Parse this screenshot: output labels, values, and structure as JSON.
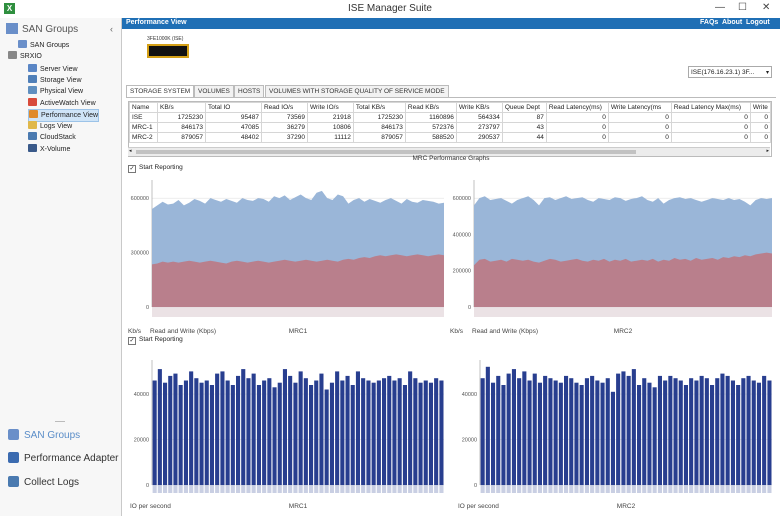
{
  "window": {
    "title": "ISE Manager Suite",
    "icon": "x-app-icon",
    "controls": [
      "—",
      "☐",
      "✕"
    ]
  },
  "sidebar": {
    "heading": "SAN Groups",
    "collapse": "‹",
    "tree": [
      {
        "label": "SAN Groups",
        "icon": "san-groups-icon",
        "color": "#6a8fc9",
        "level": 1
      },
      {
        "label": "SRXIO",
        "icon": "expand-icon",
        "color": "#888",
        "level": 0
      },
      {
        "label": "Server View",
        "icon": "server-view-icon",
        "color": "#5a86c5",
        "level": 2
      },
      {
        "label": "Storage View",
        "icon": "storage-view-icon",
        "color": "#4f7fb8",
        "level": 2
      },
      {
        "label": "Physical View",
        "icon": "physical-view-icon",
        "color": "#5f8fc0",
        "level": 2
      },
      {
        "label": "ActiveWatch View",
        "icon": "activewatch-icon",
        "color": "#d84a3a",
        "level": 2
      },
      {
        "label": "Performance View",
        "icon": "performance-icon",
        "color": "#e08a2a",
        "level": 2,
        "selected": true
      },
      {
        "label": "Logs View",
        "icon": "logs-icon",
        "color": "#e0b84a",
        "level": 2
      },
      {
        "label": "CloudStack",
        "icon": "cloudstack-icon",
        "color": "#4a7ab0",
        "level": 2
      },
      {
        "label": "X-Volume",
        "icon": "x-volume-icon",
        "color": "#3a5a8a",
        "level": 2
      }
    ],
    "nav": [
      {
        "label": "SAN Groups",
        "icon": "san-groups-nav-icon",
        "color": "#6a8fc9",
        "active": true
      },
      {
        "label": "Performance Adapter",
        "icon": "performance-adapter-icon",
        "color": "#3b6bb0",
        "active": false
      },
      {
        "label": "Collect Logs",
        "icon": "collect-logs-icon",
        "color": "#4a7ab0",
        "active": false
      }
    ]
  },
  "header": {
    "title": "Performance View",
    "links": [
      "FAQs",
      "About",
      "Logout"
    ]
  },
  "device": {
    "label": "3FE1000K (ISE)"
  },
  "selector": {
    "value": "ISE(176.16.23.1) 3F...",
    "arrow": "▾"
  },
  "tabs": [
    "STORAGE SYSTEM",
    "VOLUMES",
    "HOSTS",
    "VOLUMES WITH STORAGE QUALITY OF SERVICE MODE"
  ],
  "table": {
    "columns": [
      "Name",
      "KB/s",
      "Total IO",
      "Read IO/s",
      "Write IO/s",
      "Total KB/s",
      "Read KB/s",
      "Write KB/s",
      "Queue Dept",
      "Read Latency(ms)",
      "Write Latency(ms",
      "Read Latency Max(ms)",
      "Write"
    ],
    "rows": [
      [
        "ISE",
        "1725230",
        "95487",
        "73569",
        "21918",
        "1725230",
        "1160896",
        "564334",
        "87",
        "0",
        "0",
        "0",
        "0"
      ],
      [
        "MRC-1",
        "846173",
        "47085",
        "36279",
        "10806",
        "846173",
        "572376",
        "273797",
        "43",
        "0",
        "0",
        "0",
        "0"
      ],
      [
        "MRC-2",
        "879057",
        "48402",
        "37290",
        "11112",
        "879057",
        "588520",
        "290537",
        "44",
        "0",
        "0",
        "0",
        "0"
      ]
    ],
    "scroll_left": "◂",
    "scroll_right": "▸"
  },
  "graphs_title": "MRC Performance Graphs",
  "reporting": [
    {
      "label": "Start Reporting",
      "checked": "✓"
    },
    {
      "label": "Start Reporting",
      "checked": "✓"
    }
  ],
  "kb_unit": "Kb/s",
  "colors": {
    "total_area": "#9ab6d8",
    "read_area": "#b97f8c",
    "bars": "#283e8f",
    "header": "#1f6fb5"
  },
  "chart_data": [
    {
      "type": "area",
      "title": "MRC1",
      "xlabel": "Read and Write (Kbps)",
      "ylabel": "Kb/s",
      "ylim": [
        0,
        700000
      ],
      "yticks": [
        "600000",
        "300000",
        "0"
      ],
      "grid": true,
      "series": [
        {
          "values": [
            540000,
            560000,
            580000,
            565000,
            570000,
            590000,
            560000,
            575000,
            595000,
            585000,
            570000,
            600000,
            590000,
            580000,
            595000,
            585000,
            575000,
            600000,
            590000,
            585000,
            600000,
            595000,
            580000,
            610000,
            600000,
            615000,
            590000,
            605000,
            620000,
            600000,
            590000,
            630000,
            640000,
            600000,
            590000,
            620000,
            610000,
            570000,
            590000,
            600000,
            580000,
            595000,
            585000,
            575000,
            590000,
            600000,
            585000,
            570000,
            595000,
            580000,
            575000,
            590000,
            585000,
            580000,
            570000,
            575000
          ]
        },
        {
          "values": [
            235000,
            240000,
            250000,
            245000,
            250000,
            245000,
            250000,
            255000,
            250000,
            245000,
            250000,
            255000,
            250000,
            245000,
            240000,
            250000,
            255000,
            250000,
            245000,
            250000,
            255000,
            250000,
            245000,
            250000,
            255000,
            260000,
            255000,
            250000,
            255000,
            260000,
            255000,
            250000,
            255000,
            260000,
            255000,
            250000,
            260000,
            265000,
            260000,
            270000,
            275000,
            270000,
            280000,
            285000,
            280000,
            285000,
            290000,
            285000,
            280000,
            285000,
            290000,
            285000,
            280000,
            285000,
            290000,
            285000
          ]
        }
      ]
    },
    {
      "type": "area",
      "title": "MRC2",
      "xlabel": "Read and Write (Kbps)",
      "ylabel": "Kb/s",
      "ylim": [
        0,
        700000
      ],
      "yticks": [
        "600000",
        "400000",
        "200000",
        "0"
      ],
      "grid": true,
      "series": [
        {
          "values": [
            560000,
            600000,
            610000,
            590000,
            595000,
            600000,
            585000,
            570000,
            590000,
            600000,
            610000,
            590000,
            560000,
            600000,
            605000,
            590000,
            600000,
            610000,
            595000,
            600000,
            605000,
            590000,
            580000,
            600000,
            595000,
            590000,
            605000,
            600000,
            585000,
            595000,
            600000,
            610000,
            590000,
            580000,
            600000,
            570000,
            590000,
            600000,
            605000,
            595000,
            600000,
            590000,
            580000,
            590000,
            600000,
            595000,
            590000,
            600000,
            590000,
            595000,
            580000,
            560000,
            590000,
            600000,
            595000,
            600000
          ]
        },
        {
          "values": [
            230000,
            260000,
            265000,
            250000,
            255000,
            260000,
            250000,
            265000,
            260000,
            255000,
            260000,
            250000,
            245000,
            255000,
            265000,
            260000,
            250000,
            255000,
            260000,
            265000,
            255000,
            250000,
            260000,
            255000,
            265000,
            250000,
            260000,
            255000,
            265000,
            250000,
            255000,
            260000,
            255000,
            265000,
            250000,
            260000,
            255000,
            270000,
            260000,
            265000,
            255000,
            270000,
            260000,
            265000,
            270000,
            260000,
            275000,
            270000,
            280000,
            275000,
            285000,
            280000,
            290000,
            295000,
            300000,
            295000
          ]
        }
      ]
    },
    {
      "type": "bar",
      "title": "MRC1",
      "xlabel": "IO per second",
      "ylim": [
        0,
        55000
      ],
      "yticks": [
        "40000",
        "20000",
        "0"
      ],
      "values": [
        46000,
        51000,
        45000,
        48000,
        49000,
        44000,
        46000,
        50000,
        47000,
        45000,
        46000,
        44000,
        49000,
        50000,
        46000,
        44000,
        48000,
        51000,
        47000,
        49000,
        44000,
        46000,
        47000,
        43000,
        45000,
        51000,
        48000,
        45000,
        50000,
        47000,
        44000,
        46000,
        49000,
        42000,
        45000,
        50000,
        46000,
        48000,
        44000,
        50000,
        47000,
        46000,
        45000,
        46000,
        47000,
        48000,
        46000,
        47000,
        44000,
        50000,
        47000,
        45000,
        46000,
        45000,
        47000,
        46000
      ]
    },
    {
      "type": "bar",
      "title": "MRC2",
      "xlabel": "IO per second",
      "ylim": [
        0,
        55000
      ],
      "yticks": [
        "40000",
        "20000",
        "0"
      ],
      "values": [
        47000,
        52000,
        45000,
        48000,
        44000,
        49000,
        51000,
        47000,
        50000,
        46000,
        49000,
        45000,
        48000,
        47000,
        46000,
        45000,
        48000,
        47000,
        45000,
        44000,
        47000,
        48000,
        46000,
        45000,
        47000,
        41000,
        49000,
        50000,
        48000,
        51000,
        44000,
        47000,
        45000,
        43000,
        48000,
        46000,
        48000,
        47000,
        46000,
        44000,
        47000,
        46000,
        48000,
        47000,
        44000,
        47000,
        49000,
        48000,
        46000,
        44000,
        47000,
        48000,
        46000,
        45000,
        48000,
        46000
      ]
    }
  ]
}
